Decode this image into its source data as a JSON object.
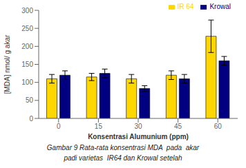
{
  "chart_data": {
    "type": "bar",
    "categories": [
      0,
      15,
      30,
      45,
      60
    ],
    "series": [
      {
        "name": "IR 64",
        "color": "#FFD700",
        "values": [
          110,
          115,
          110,
          120,
          228
        ],
        "errors": [
          12,
          10,
          12,
          12,
          45
        ]
      },
      {
        "name": "Krowal",
        "color": "#000080",
        "values": [
          120,
          125,
          83,
          110,
          160
        ],
        "errors": [
          12,
          12,
          8,
          12,
          12
        ]
      }
    ],
    "xlabel": "Konsentrasi Alumunium (ppm)",
    "ylabel": "[MDA] nmol/ g akar",
    "ylim": [
      0,
      300
    ],
    "yticks": [
      0,
      50,
      100,
      150,
      200,
      250,
      300
    ],
    "grid": false,
    "legend": "upper right",
    "annotations": [
      "Gambar 9 Rata-rata konsentrasi MDA  pada  akar",
      "padi varietas  IR64 dan Krowal setelah"
    ]
  }
}
